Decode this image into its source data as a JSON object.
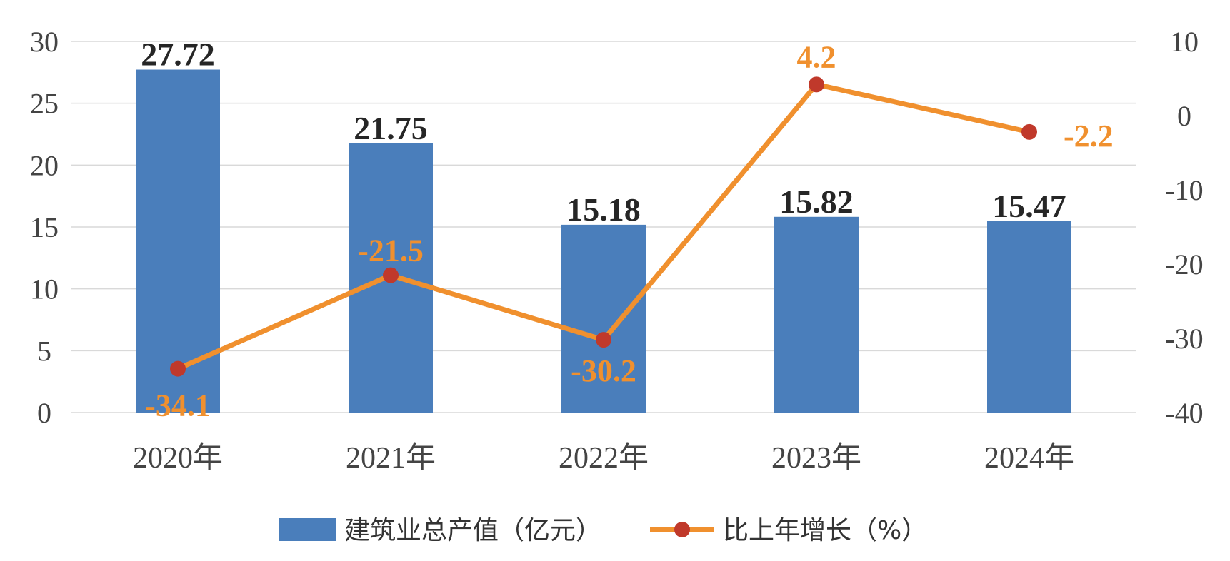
{
  "chart_data": {
    "type": "bar",
    "categories": [
      "2020年",
      "2021年",
      "2022年",
      "2023年",
      "2024年"
    ],
    "series": [
      {
        "name": "建筑业总产值（亿元）",
        "type": "bar",
        "axis": "left",
        "values": [
          27.72,
          21.75,
          15.18,
          15.82,
          15.47
        ],
        "labels": [
          "27.72",
          "21.75",
          "15.18",
          "15.82",
          "15.47"
        ]
      },
      {
        "name": "比上年增长（%）",
        "type": "line",
        "axis": "right",
        "values": [
          -34.1,
          -21.5,
          -30.2,
          4.2,
          -2.2
        ],
        "labels": [
          "-34.1",
          "-21.5",
          "-30.2",
          "4.2",
          "-2.2"
        ]
      }
    ],
    "ylim": [
      0,
      30
    ],
    "yticks": [
      "0",
      "5",
      "10",
      "15",
      "20",
      "25",
      "30"
    ],
    "y2lim": [
      -40,
      10
    ],
    "y2ticks": [
      "-40",
      "-30",
      "-20",
      "-10",
      "0",
      "10"
    ],
    "grid": true,
    "legend_position": "bottom",
    "colors": {
      "bar": "#4a7ebb",
      "line": "#f0902e",
      "marker": "#c0392b",
      "grid": "#d9d9d9"
    }
  }
}
